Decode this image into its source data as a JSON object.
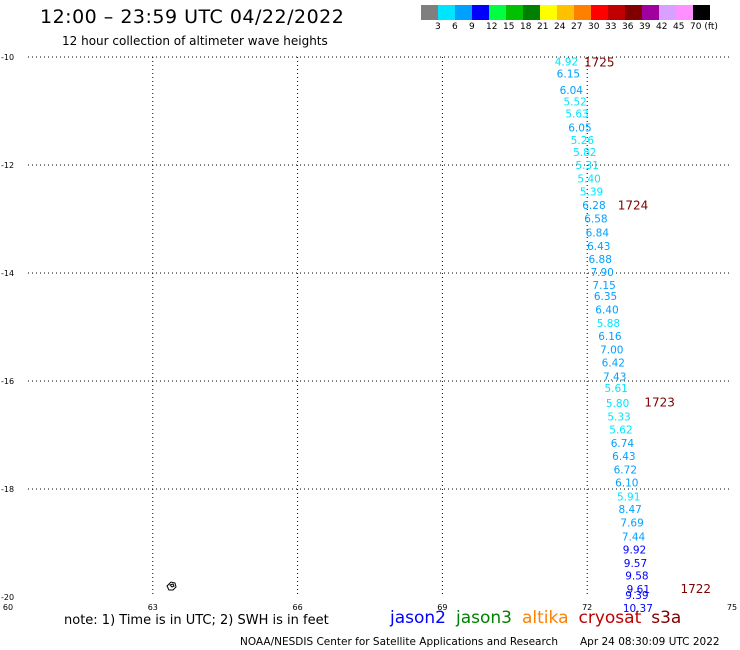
{
  "header": {
    "title": "12:00 – 23:59 UTC 04/22/2022",
    "subtitle": "12 hour collection of altimeter wave heights"
  },
  "color_scale": {
    "labels": [
      "3",
      "6",
      "9",
      "12",
      "15",
      "18",
      "21",
      "24",
      "27",
      "30",
      "33",
      "36",
      "39",
      "42",
      "45",
      "70 (ft)"
    ],
    "colors": [
      "#7f7f7f",
      "#00e5ff",
      "#00a0ff",
      "#0000ff",
      "#00ff40",
      "#00c000",
      "#008000",
      "#ffff00",
      "#ffc000",
      "#ff8000",
      "#ff0000",
      "#c00000",
      "#800000",
      "#a000a0",
      "#d8a0ff",
      "#ff90ff",
      "#000000"
    ]
  },
  "map": {
    "x_ticks": [
      "60",
      "63",
      "66",
      "69",
      "72",
      "75"
    ],
    "y_ticks": [
      "-10",
      "-12",
      "-14",
      "-16",
      "-18",
      "-20"
    ],
    "track_points": [
      {
        "lat": -10.08,
        "lon": 71.57,
        "swh": "4.92"
      },
      {
        "lat": -10.31,
        "lon": 71.61,
        "swh": "6.15"
      },
      {
        "lat": -10.61,
        "lon": 71.67,
        "swh": "6.04"
      },
      {
        "lat": -10.82,
        "lon": 71.75,
        "swh": "5.52"
      },
      {
        "lat": -11.05,
        "lon": 71.79,
        "swh": "5.63"
      },
      {
        "lat": -11.31,
        "lon": 71.85,
        "swh": "6.05"
      },
      {
        "lat": -11.54,
        "lon": 71.9,
        "swh": "5.26"
      },
      {
        "lat": -11.76,
        "lon": 71.95,
        "swh": "5.82"
      },
      {
        "lat": -12.0,
        "lon": 72.0,
        "swh": "5.31"
      },
      {
        "lat": -12.25,
        "lon": 72.04,
        "swh": "5.40"
      },
      {
        "lat": -12.49,
        "lon": 72.09,
        "swh": "5.39"
      },
      {
        "lat": -12.74,
        "lon": 72.14,
        "swh": "6.28"
      },
      {
        "lat": -12.99,
        "lon": 72.18,
        "swh": "6.58"
      },
      {
        "lat": -13.25,
        "lon": 72.21,
        "swh": "6.84"
      },
      {
        "lat": -13.5,
        "lon": 72.24,
        "swh": "6.43"
      },
      {
        "lat": -13.74,
        "lon": 72.27,
        "swh": "6.88"
      },
      {
        "lat": -13.98,
        "lon": 72.31,
        "swh": "7.90"
      },
      {
        "lat": -14.22,
        "lon": 72.35,
        "swh": "7.15"
      },
      {
        "lat": -14.43,
        "lon": 72.38,
        "swh": "6.35"
      },
      {
        "lat": -14.68,
        "lon": 72.41,
        "swh": "6.40"
      },
      {
        "lat": -14.93,
        "lon": 72.44,
        "swh": "5.88"
      },
      {
        "lat": -15.17,
        "lon": 72.47,
        "swh": "6.16"
      },
      {
        "lat": -15.42,
        "lon": 72.51,
        "swh": "7.00"
      },
      {
        "lat": -15.66,
        "lon": 72.54,
        "swh": "6.42"
      },
      {
        "lat": -15.92,
        "lon": 72.57,
        "swh": "7.43"
      },
      {
        "lat": -16.13,
        "lon": 72.6,
        "swh": "5.61"
      },
      {
        "lat": -16.41,
        "lon": 72.63,
        "swh": "5.80"
      },
      {
        "lat": -16.66,
        "lon": 72.66,
        "swh": "5.33"
      },
      {
        "lat": -16.9,
        "lon": 72.7,
        "swh": "5.62"
      },
      {
        "lat": -17.15,
        "lon": 72.73,
        "swh": "6.74"
      },
      {
        "lat": -17.39,
        "lon": 72.76,
        "swh": "6.43"
      },
      {
        "lat": -17.64,
        "lon": 72.79,
        "swh": "6.72"
      },
      {
        "lat": -17.88,
        "lon": 72.82,
        "swh": "6.10"
      },
      {
        "lat": -18.14,
        "lon": 72.86,
        "swh": "5.91"
      },
      {
        "lat": -18.37,
        "lon": 72.89,
        "swh": "8.47"
      },
      {
        "lat": -18.62,
        "lon": 72.93,
        "swh": "7.69"
      },
      {
        "lat": -18.88,
        "lon": 72.96,
        "swh": "7.44"
      },
      {
        "lat": -19.12,
        "lon": 72.98,
        "swh": "9.92"
      },
      {
        "lat": -19.37,
        "lon": 73.0,
        "swh": "9.57"
      },
      {
        "lat": -19.6,
        "lon": 73.03,
        "swh": "9.58"
      },
      {
        "lat": -19.85,
        "lon": 73.06,
        "swh": "9.61"
      },
      {
        "lat": -19.96,
        "lon": 73.03,
        "swh": "9.39"
      },
      {
        "lat": -20.2,
        "lon": 73.05,
        "swh": "10.37"
      }
    ],
    "time_labels": [
      {
        "lat": -10.1,
        "lon": 72.25,
        "text": "1725"
      },
      {
        "lat": -12.75,
        "lon": 72.95,
        "text": "1724"
      },
      {
        "lat": -16.4,
        "lon": 73.5,
        "text": "1723"
      },
      {
        "lat": -19.85,
        "lon": 74.25,
        "text": "1722"
      }
    ]
  },
  "notes": {
    "note": "note: 1) Time is in UTC; 2) SWH is in feet",
    "satellites": [
      {
        "name": "jason2",
        "color": "#0000ff"
      },
      {
        "name": "jason3",
        "color": "#008000"
      },
      {
        "name": "altika",
        "color": "#ff8000"
      },
      {
        "name": "cryosat",
        "color": "#c00000"
      },
      {
        "name": "s3a",
        "color": "#800000"
      }
    ]
  },
  "footer": {
    "credit": "NOAA/NESDIS Center for Satellite Applications and Research",
    "timestamp": "Apr 24 08:30:09 UTC 2022"
  }
}
